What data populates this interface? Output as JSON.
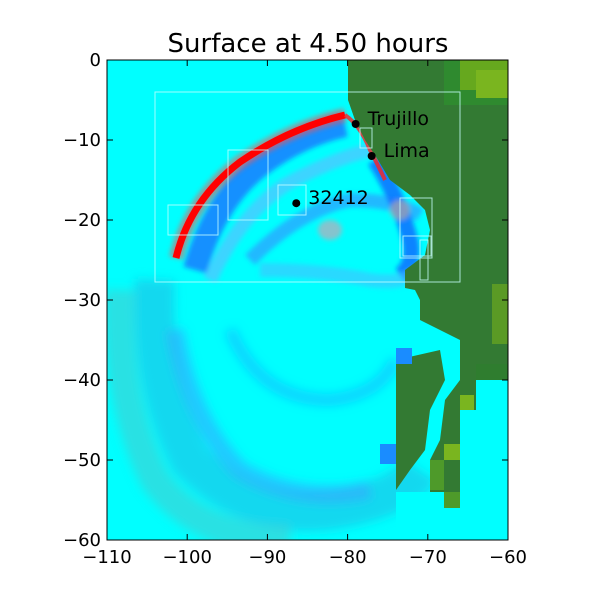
{
  "title": "Surface at 4.50 hours",
  "colors": {
    "ocean": "#00ffff",
    "land": "#337a33",
    "wave_high": "#ff0000",
    "wave_trough": "#1a8cff",
    "grid_lines": "#c8ffff"
  },
  "map": {
    "xlim": [
      -110,
      -60
    ],
    "ylim": [
      -60,
      0
    ],
    "x_ticks": [
      -110,
      -100,
      -90,
      -80,
      -70,
      -60
    ],
    "x_tick_labels": [
      "−110",
      "−100",
      "−90",
      "−80",
      "−70",
      "−60"
    ],
    "y_ticks": [
      0,
      -10,
      -20,
      -30,
      -40,
      -50,
      -60
    ],
    "y_tick_labels": [
      "0",
      "−10",
      "−20",
      "−30",
      "−40",
      "−50",
      "−60"
    ],
    "places": [
      {
        "name": "Trujillo",
        "lon": -79.0,
        "lat": -8.0
      },
      {
        "name": "Lima",
        "lon": -77.0,
        "lat": -12.0
      },
      {
        "name": "32412",
        "lon": -86.4,
        "lat": -17.9
      }
    ]
  }
}
